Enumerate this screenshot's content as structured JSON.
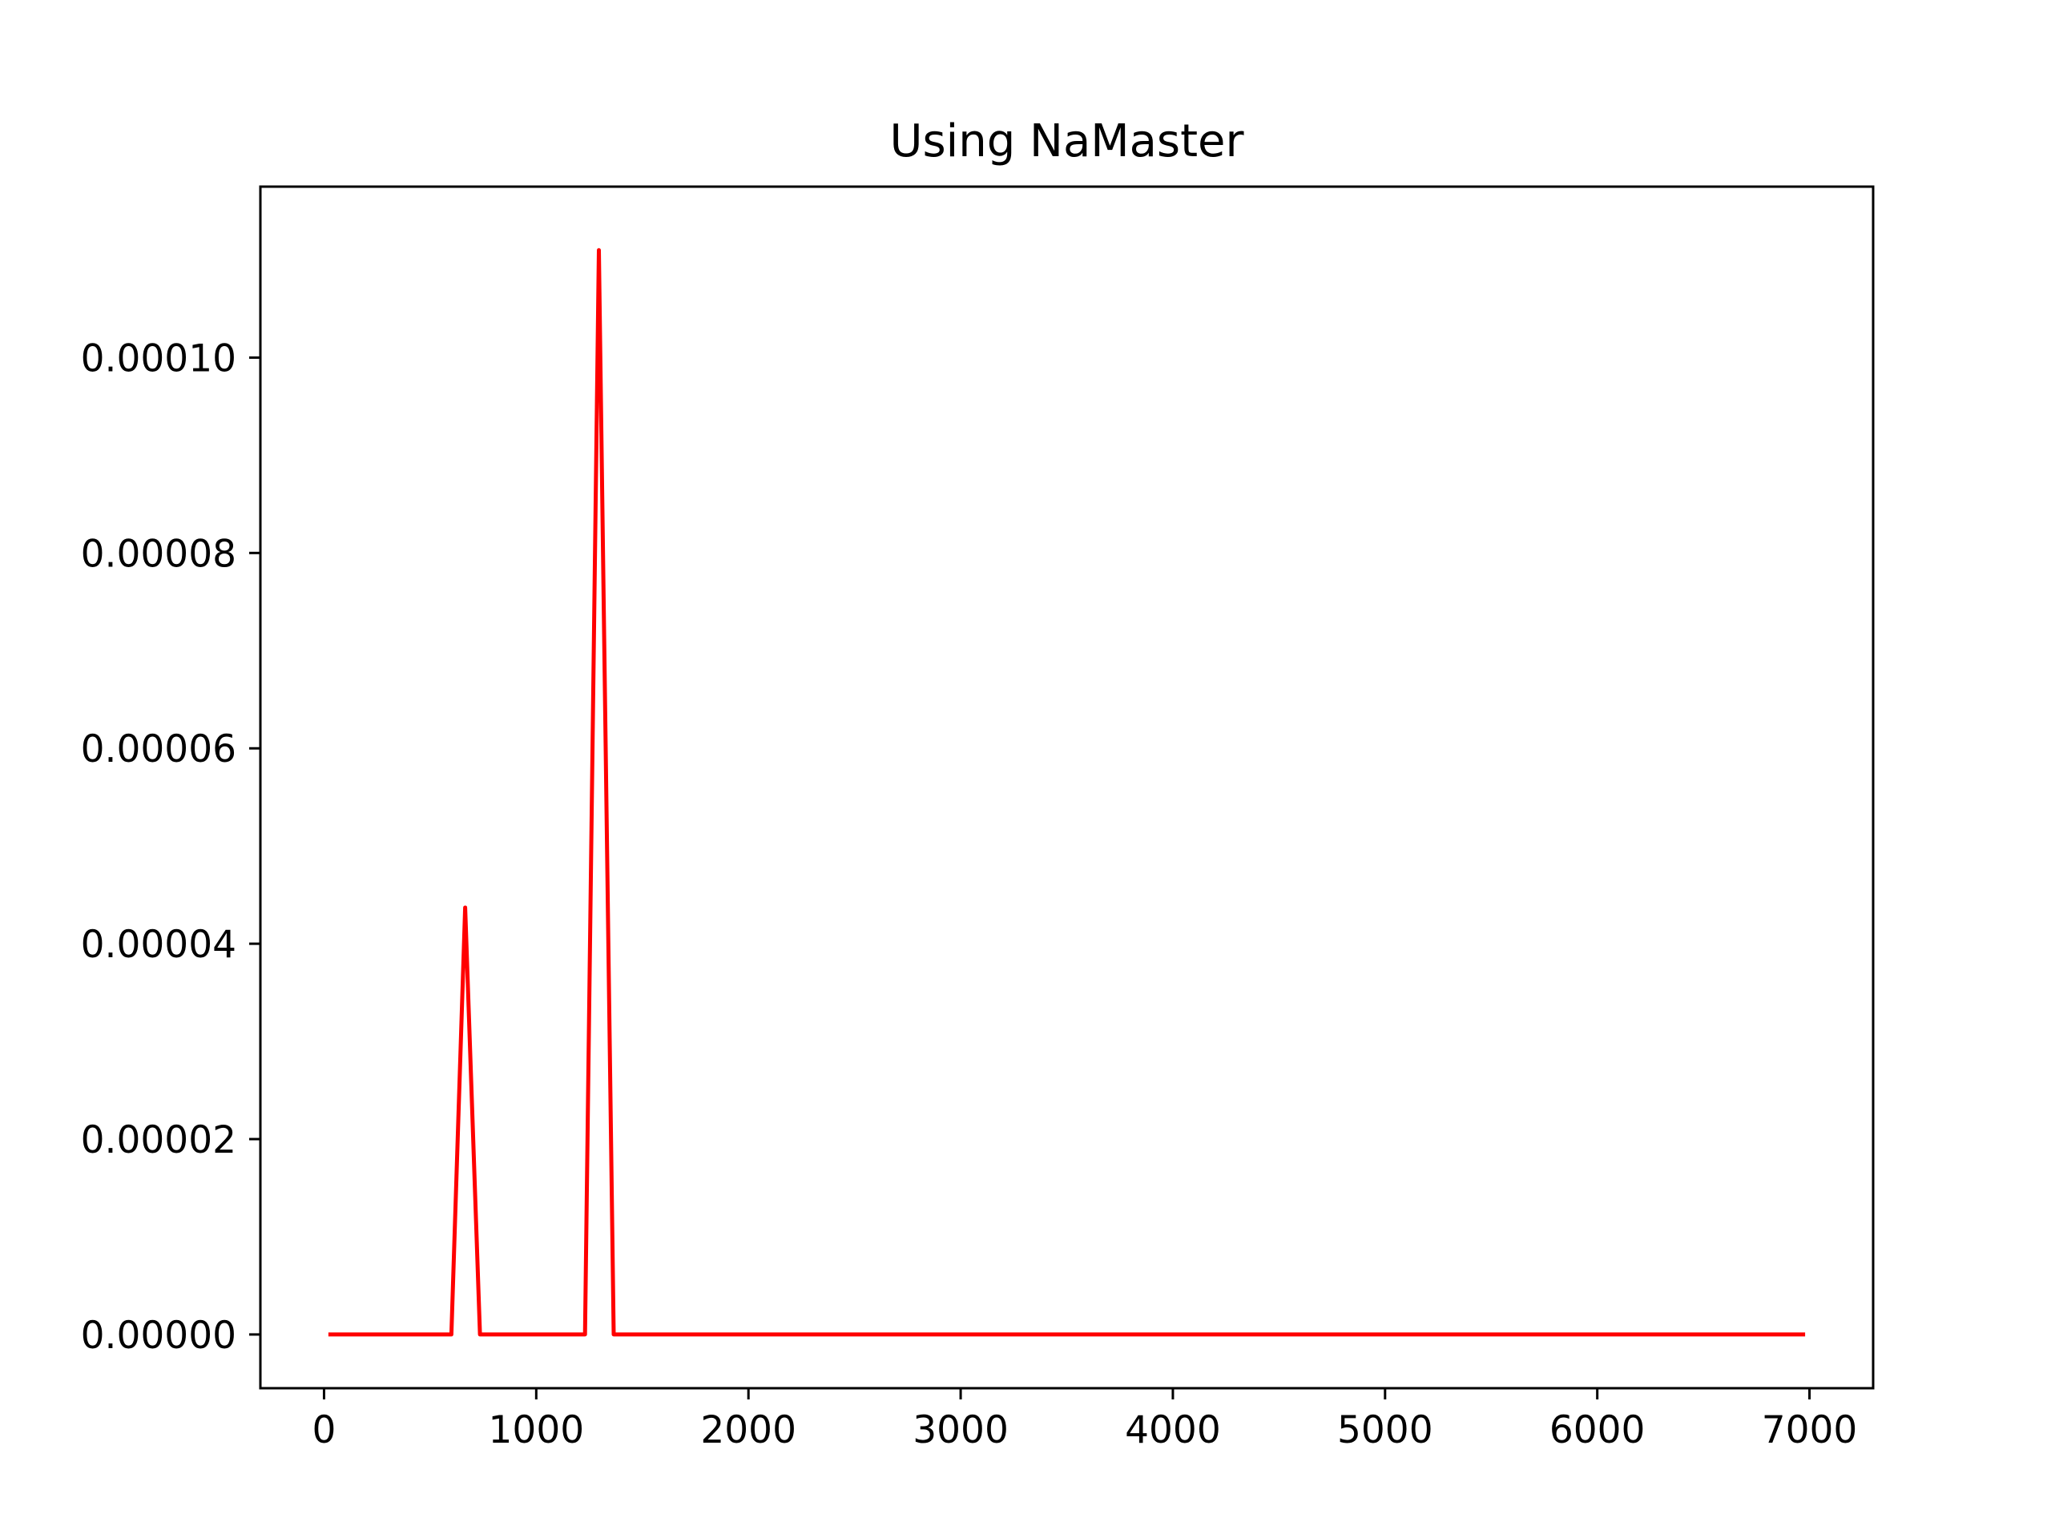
{
  "chart_data": {
    "type": "line",
    "title": "Using NaMaster",
    "xlabel": "",
    "ylabel": "",
    "xlim": [
      -300,
      7300
    ],
    "ylim": [
      -5.5e-06,
      0.0001175
    ],
    "x_ticks": [
      0,
      1000,
      2000,
      3000,
      4000,
      5000,
      6000,
      7000
    ],
    "x_tick_labels": [
      "0",
      "1000",
      "2000",
      "3000",
      "4000",
      "5000",
      "6000",
      "7000"
    ],
    "y_ticks": [
      0,
      2e-05,
      4e-05,
      6e-05,
      8e-05,
      0.0001
    ],
    "y_tick_labels": [
      "0.00000",
      "0.00002",
      "0.00004",
      "0.00006",
      "0.00008",
      "0.00010"
    ],
    "grid": false,
    "series": [
      {
        "color": "#ff0000",
        "x": [
          30,
          600,
          665,
          735,
          1230,
          1295,
          1365,
          6970
        ],
        "y": [
          0,
          0,
          4.37e-05,
          0,
          0,
          0.000111,
          0,
          0
        ]
      }
    ]
  }
}
